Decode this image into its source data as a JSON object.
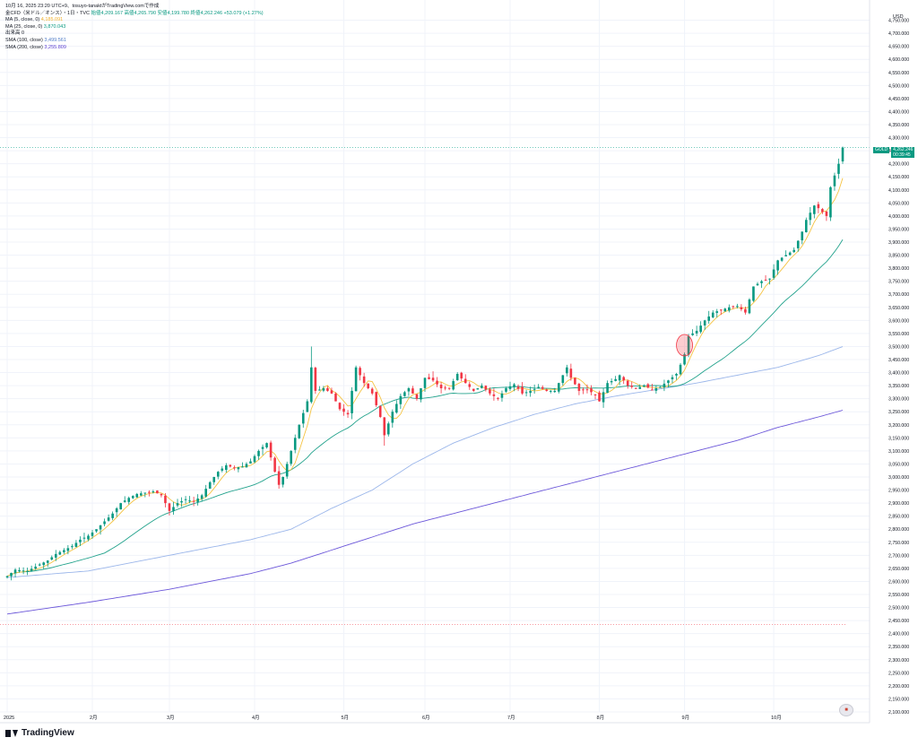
{
  "header": {
    "line1": "10月 16, 2025 23:20 UTC+9、tosuyo-tanaktがTradingView.comで作成",
    "symbol": "金CFD（米ドル／オンス）・1日・TVC",
    "ohlc": "始値4,209.167  高値4,265.790  安値4,199.780  終値4,262.246  +53.079 (+1.27%)",
    "indicators": [
      {
        "label": "MA (5, close, 0)",
        "value": "4,185.091",
        "cls": "ma5"
      },
      {
        "label": "MA (25, close, 0)",
        "value": "3,870.043",
        "cls": "ma25"
      },
      {
        "label": "出来高",
        "value": "0",
        "cls": ""
      },
      {
        "label": "SMA (100, close)",
        "value": "3,499.561",
        "cls": "sma100"
      },
      {
        "label": "SMA (200, close)",
        "value": "3,255.809",
        "cls": "sma200"
      }
    ]
  },
  "brand": "TradingView",
  "currency": "USD",
  "price_tag": {
    "symbol": "GOLD",
    "price": "4,262.246",
    "countdown": "00:39:45"
  },
  "colors": {
    "up": "#089981",
    "down": "#f23645",
    "ma5": "#f5c342",
    "ma25": "#22a28c",
    "sma100": "#9bb6ea",
    "sma200": "#6b56d9",
    "grid": "#f0f3fa",
    "axis_text": "#131722",
    "dotted_line": "#22ab94",
    "dotted_red": "#f23645"
  },
  "chart_data": {
    "type": "candlestick",
    "title": "",
    "ylim": [
      2100,
      4800
    ],
    "y_ticks": [
      2100,
      2150,
      2200,
      2250,
      2300,
      2350,
      2400,
      2450,
      2500,
      2550,
      2600,
      2650,
      2700,
      2750,
      2800,
      2850,
      2900,
      2950,
      3000,
      3050,
      3100,
      3150,
      3200,
      3250,
      3300,
      3350,
      3400,
      3450,
      3500,
      3550,
      3600,
      3650,
      3700,
      3750,
      3800,
      3850,
      3900,
      3950,
      4000,
      4050,
      4100,
      4150,
      4200,
      4250,
      4300,
      4350,
      4400,
      4450,
      4500,
      4550,
      4600,
      4650,
      4700,
      4750
    ],
    "y_tick_labels": [
      "2,100.000",
      "2,150.000",
      "2,200.000",
      "2,250.000",
      "2,300.000",
      "2,350.000",
      "2,400.000",
      "2,450.000",
      "2,500.000",
      "2,550.000",
      "2,600.000",
      "2,650.000",
      "2,700.000",
      "2,750.000",
      "2,800.000",
      "2,850.000",
      "2,900.000",
      "2,950.000",
      "3,000.000",
      "3,050.000",
      "3,100.000",
      "3,150.000",
      "3,200.000",
      "3,250.000",
      "3,300.000",
      "3,350.000",
      "3,400.000",
      "3,450.000",
      "3,500.000",
      "3,550.000",
      "3,600.000",
      "3,650.000",
      "3,700.000",
      "3,750.000",
      "3,800.000",
      "3,850.000",
      "3,900.000",
      "3,950.000",
      "4,000.000",
      "4,050.000",
      "4,100.000",
      "4,150.000",
      "4,200.000",
      "4,250.000",
      "4,300.000",
      "4,350.000",
      "4,400.000",
      "4,450.000",
      "4,500.000",
      "4,550.000",
      "4,600.000",
      "4,650.000",
      "4,700.000",
      "4,750.000"
    ],
    "x_labels": [
      "2025",
      "2月",
      "3月",
      "4月",
      "5月",
      "6月",
      "7月",
      "8月",
      "9月",
      "10月"
    ],
    "x_label_index": [
      0,
      21,
      40,
      61,
      83,
      103,
      124,
      146,
      167,
      189
    ],
    "last_price": 4262.246,
    "horizontal_marker": 2435,
    "highlight_index": 167,
    "keypoints": [
      [
        0,
        2620
      ],
      [
        2,
        2645
      ],
      [
        5,
        2640
      ],
      [
        8,
        2665
      ],
      [
        10,
        2680
      ],
      [
        12,
        2705
      ],
      [
        14,
        2720
      ],
      [
        16,
        2735
      ],
      [
        18,
        2760
      ],
      [
        20,
        2775
      ],
      [
        22,
        2800
      ],
      [
        24,
        2830
      ],
      [
        26,
        2860
      ],
      [
        28,
        2900
      ],
      [
        30,
        2920
      ],
      [
        32,
        2935
      ],
      [
        34,
        2940
      ],
      [
        36,
        2945
      ],
      [
        38,
        2930
      ],
      [
        40,
        2870
      ],
      [
        42,
        2900
      ],
      [
        44,
        2915
      ],
      [
        46,
        2905
      ],
      [
        48,
        2930
      ],
      [
        50,
        2980
      ],
      [
        52,
        3020
      ],
      [
        54,
        3045
      ],
      [
        56,
        3035
      ],
      [
        58,
        3040
      ],
      [
        60,
        3060
      ],
      [
        62,
        3100
      ],
      [
        64,
        3130
      ],
      [
        66,
        3020
      ],
      [
        67,
        2970
      ],
      [
        68,
        3000
      ],
      [
        70,
        3100
      ],
      [
        72,
        3200
      ],
      [
        74,
        3290
      ],
      [
        75,
        3420
      ],
      [
        76,
        3330
      ],
      [
        78,
        3340
      ],
      [
        80,
        3320
      ],
      [
        82,
        3260
      ],
      [
        84,
        3240
      ],
      [
        86,
        3420
      ],
      [
        88,
        3360
      ],
      [
        90,
        3320
      ],
      [
        92,
        3230
      ],
      [
        93,
        3160
      ],
      [
        95,
        3250
      ],
      [
        97,
        3310
      ],
      [
        99,
        3340
      ],
      [
        101,
        3300
      ],
      [
        103,
        3380
      ],
      [
        105,
        3370
      ],
      [
        107,
        3340
      ],
      [
        109,
        3340
      ],
      [
        111,
        3395
      ],
      [
        113,
        3360
      ],
      [
        115,
        3330
      ],
      [
        117,
        3350
      ],
      [
        119,
        3320
      ],
      [
        121,
        3300
      ],
      [
        123,
        3340
      ],
      [
        125,
        3355
      ],
      [
        127,
        3320
      ],
      [
        129,
        3330
      ],
      [
        131,
        3345
      ],
      [
        133,
        3330
      ],
      [
        135,
        3330
      ],
      [
        137,
        3390
      ],
      [
        138,
        3420
      ],
      [
        139,
        3380
      ],
      [
        141,
        3330
      ],
      [
        143,
        3335
      ],
      [
        145,
        3315
      ],
      [
        146,
        3290
      ],
      [
        148,
        3360
      ],
      [
        150,
        3375
      ],
      [
        151,
        3390
      ],
      [
        153,
        3350
      ],
      [
        155,
        3340
      ],
      [
        157,
        3350
      ],
      [
        159,
        3335
      ],
      [
        161,
        3345
      ],
      [
        163,
        3370
      ],
      [
        165,
        3395
      ],
      [
        166,
        3430
      ],
      [
        167,
        3470
      ],
      [
        168,
        3540
      ],
      [
        170,
        3560
      ],
      [
        172,
        3600
      ],
      [
        174,
        3630
      ],
      [
        176,
        3640
      ],
      [
        178,
        3650
      ],
      [
        180,
        3655
      ],
      [
        182,
        3630
      ],
      [
        184,
        3730
      ],
      [
        186,
        3750
      ],
      [
        188,
        3760
      ],
      [
        190,
        3830
      ],
      [
        192,
        3850
      ],
      [
        194,
        3870
      ],
      [
        196,
        3940
      ],
      [
        197,
        3985
      ],
      [
        199,
        4040
      ],
      [
        200,
        4030
      ],
      [
        202,
        4000
      ],
      [
        203,
        4110
      ],
      [
        205,
        4200
      ],
      [
        206,
        4262
      ]
    ],
    "series": [
      {
        "name": "MA (5, close, 0)",
        "color": "#f5c342",
        "last": 4185.091
      },
      {
        "name": "MA (25, close, 0)",
        "color": "#22a28c",
        "last": 3870.043
      },
      {
        "name": "SMA (100, close)",
        "color": "#9bb6ea",
        "points": [
          [
            0,
            2615
          ],
          [
            20,
            2640
          ],
          [
            40,
            2700
          ],
          [
            60,
            2760
          ],
          [
            70,
            2800
          ],
          [
            80,
            2880
          ],
          [
            90,
            2950
          ],
          [
            100,
            3050
          ],
          [
            110,
            3130
          ],
          [
            120,
            3190
          ],
          [
            130,
            3240
          ],
          [
            140,
            3280
          ],
          [
            150,
            3310
          ],
          [
            160,
            3335
          ],
          [
            170,
            3360
          ],
          [
            180,
            3390
          ],
          [
            190,
            3420
          ],
          [
            200,
            3465
          ],
          [
            206,
            3499.561
          ]
        ]
      },
      {
        "name": "SMA (200, close)",
        "color": "#6b56d9",
        "points": [
          [
            0,
            2475
          ],
          [
            20,
            2520
          ],
          [
            40,
            2570
          ],
          [
            60,
            2630
          ],
          [
            70,
            2670
          ],
          [
            80,
            2720
          ],
          [
            90,
            2770
          ],
          [
            100,
            2820
          ],
          [
            110,
            2860
          ],
          [
            120,
            2900
          ],
          [
            130,
            2940
          ],
          [
            140,
            2980
          ],
          [
            150,
            3020
          ],
          [
            160,
            3060
          ],
          [
            170,
            3100
          ],
          [
            180,
            3140
          ],
          [
            190,
            3190
          ],
          [
            200,
            3230
          ],
          [
            206,
            3255.809
          ]
        ]
      }
    ]
  }
}
